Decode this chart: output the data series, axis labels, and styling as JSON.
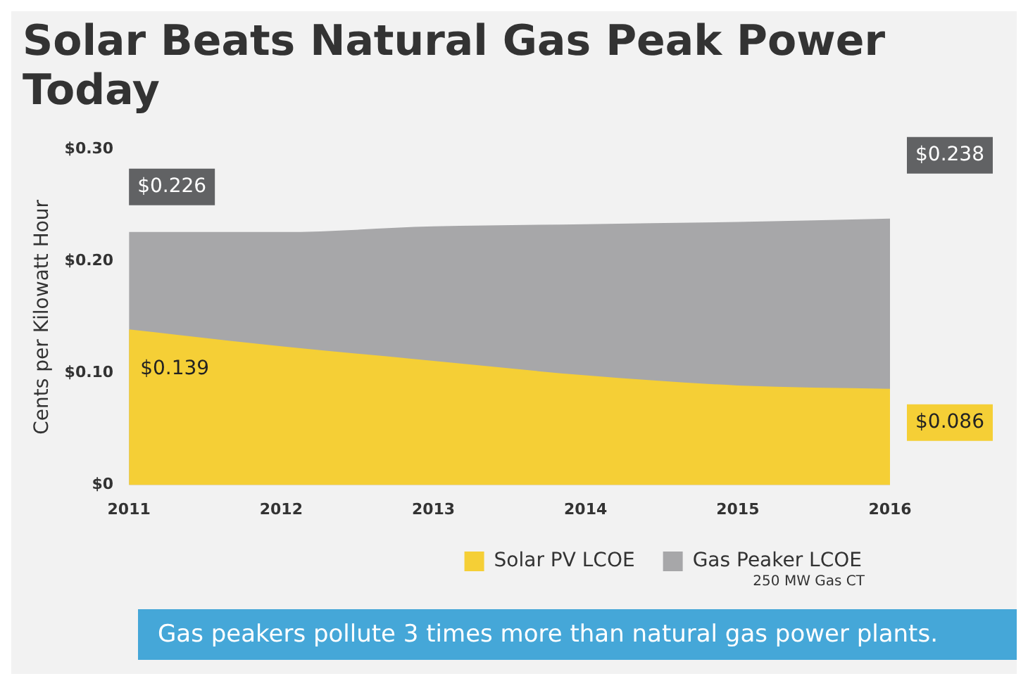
{
  "chart_data": {
    "type": "area",
    "title": "Solar Beats Natural Gas Peak Power Today",
    "ylabel": "Cents per Kilowatt Hour",
    "categories": [
      "2011",
      "2012",
      "2013",
      "2014",
      "2015",
      "2016"
    ],
    "series": [
      {
        "name": "Solar PV LCOE",
        "color": "#f5cf36",
        "values": [
          0.139,
          0.124,
          0.111,
          0.098,
          0.089,
          0.086
        ],
        "value_labels": [
          "$0.139",
          null,
          null,
          null,
          null,
          "$0.086"
        ]
      },
      {
        "name": "Gas Peaker LCOE",
        "color": "#a7a7a9",
        "values": [
          0.226,
          0.226,
          0.231,
          0.233,
          0.235,
          0.238
        ],
        "value_labels": [
          "$0.226",
          null,
          null,
          null,
          null,
          "$0.238"
        ]
      }
    ],
    "ylim": [
      0,
      0.3
    ],
    "yticks": [
      {
        "value": 0,
        "label": "$0"
      },
      {
        "value": 0.1,
        "label": "$0.10"
      },
      {
        "value": 0.2,
        "label": "$0.20"
      },
      {
        "value": 0.3,
        "label": "$0.30"
      }
    ],
    "legend": "bottom right",
    "annotations": [
      "250 MW Gas CT",
      "Gas peakers pollute 3 times more than natural gas power plants."
    ]
  }
}
